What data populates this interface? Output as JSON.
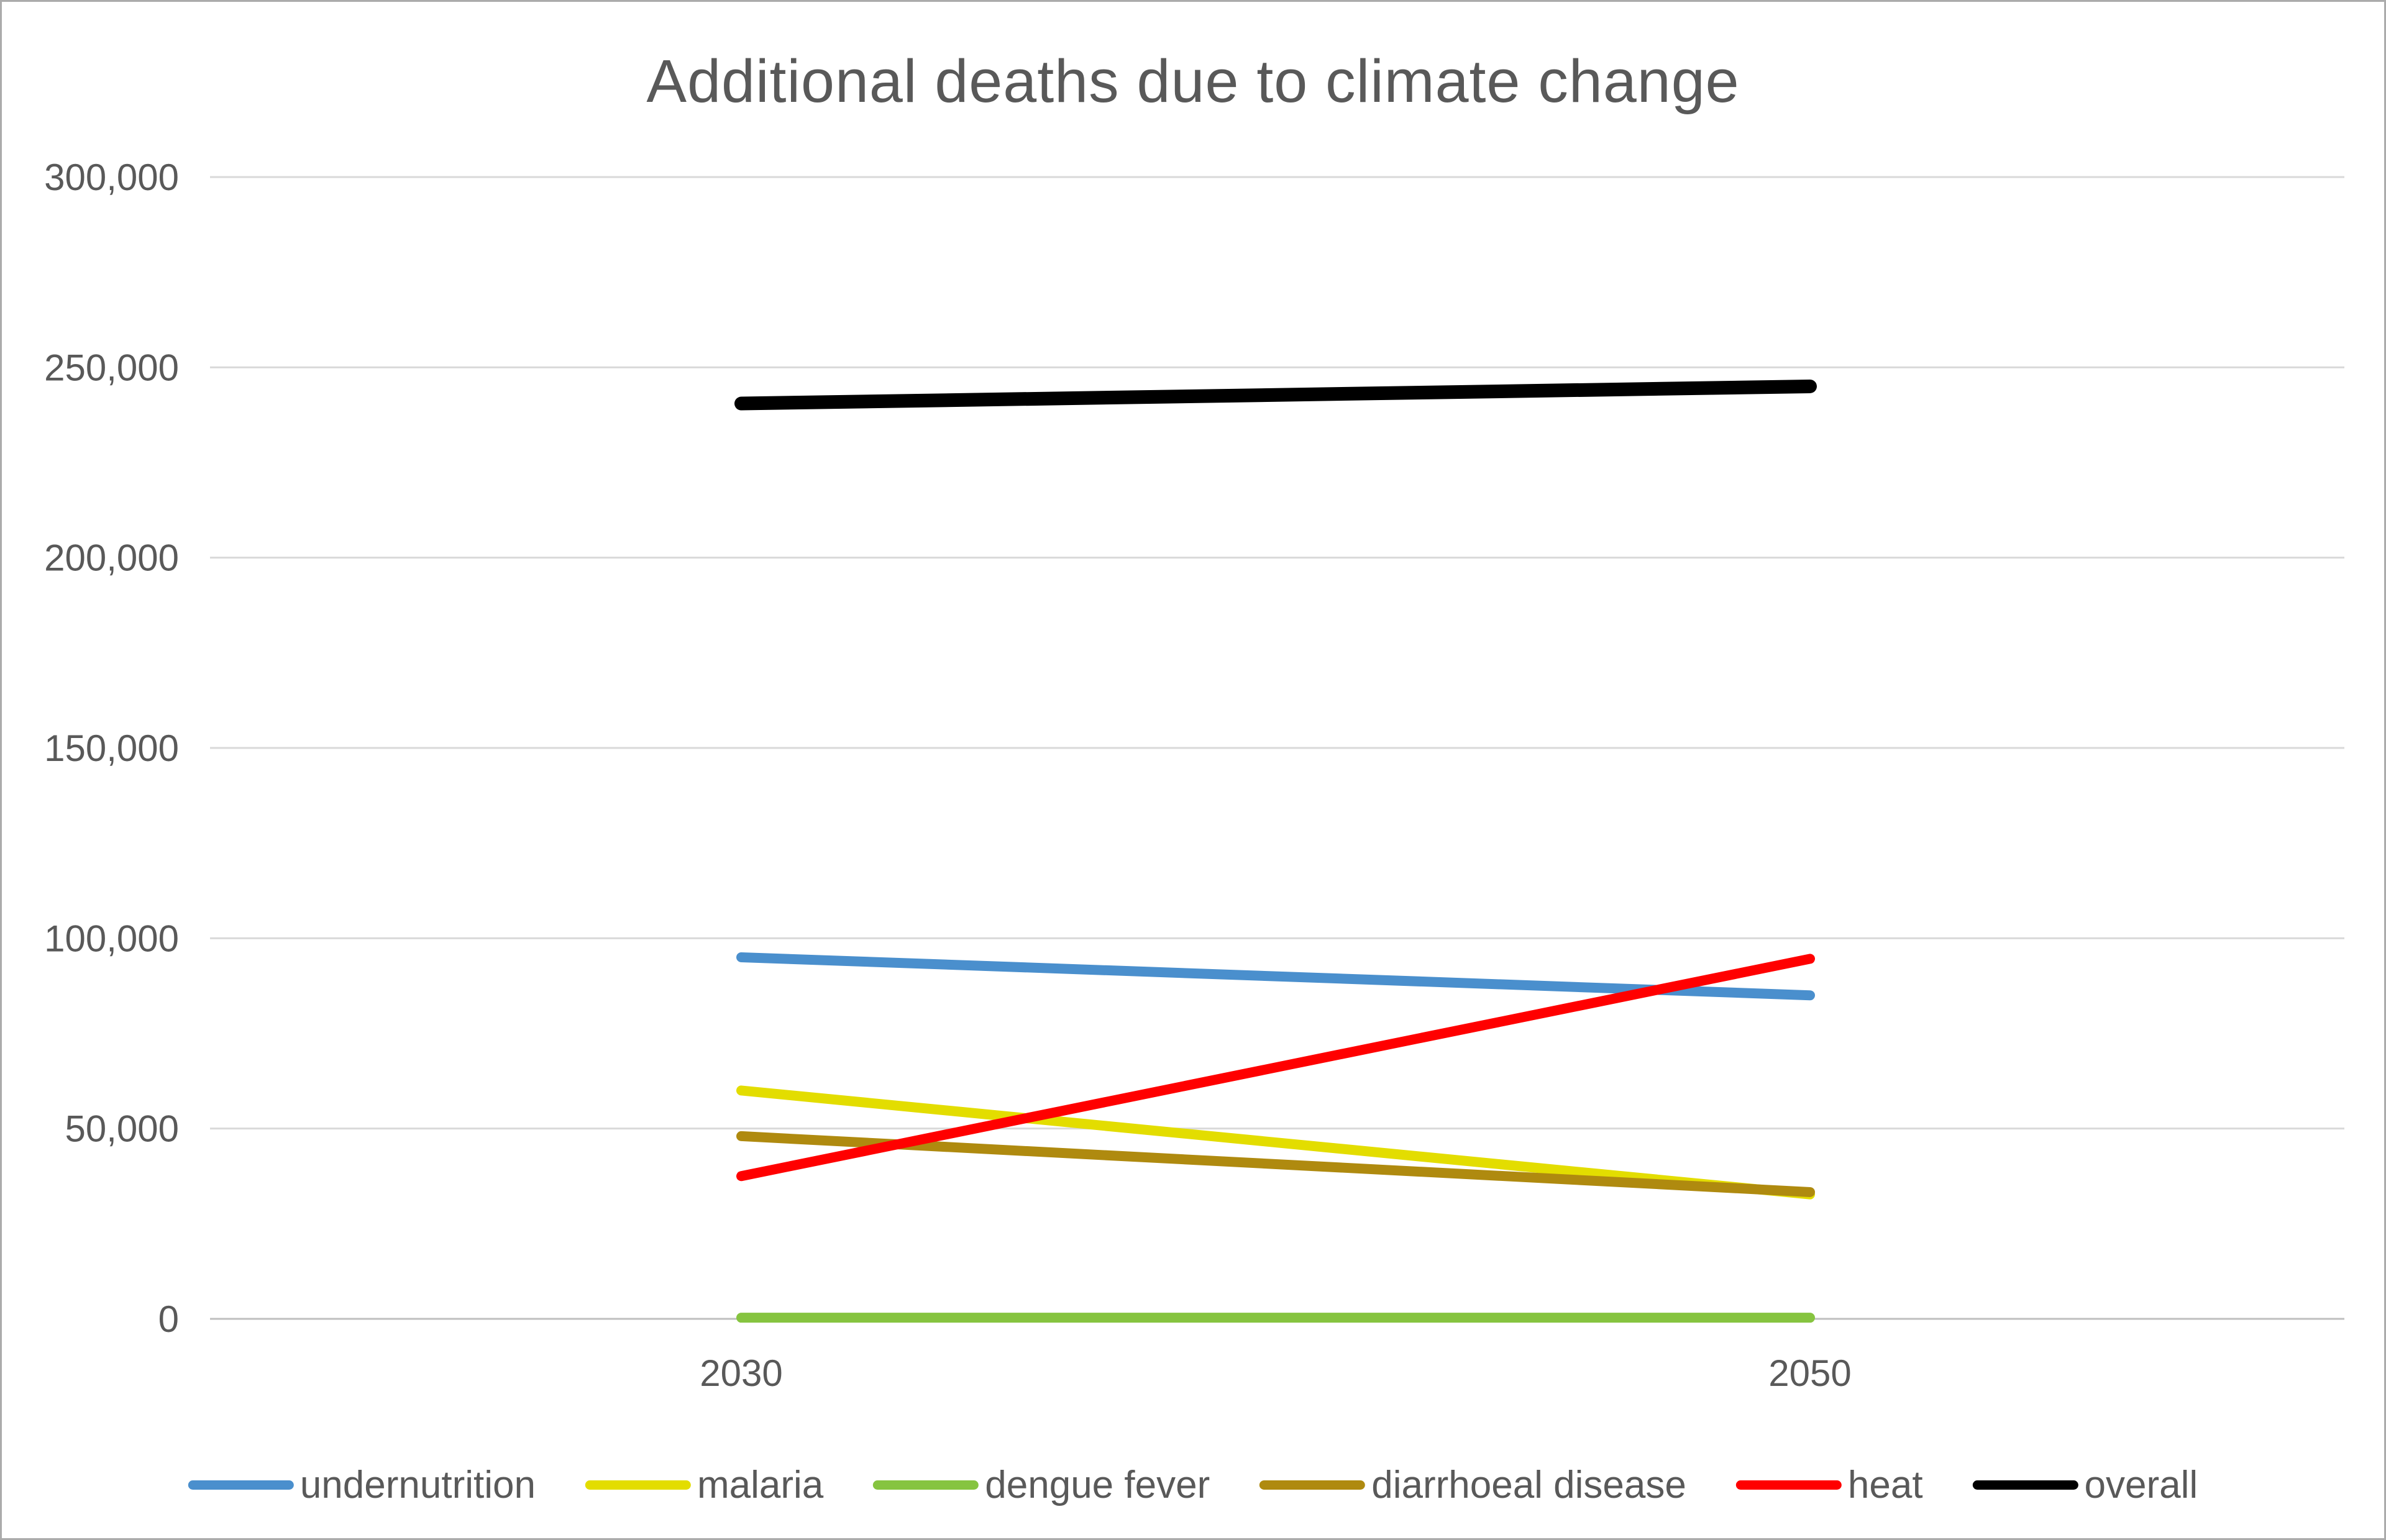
{
  "chart_data": {
    "type": "line",
    "title": "Additional deaths due to climate change",
    "categories": [
      "2030",
      "2050"
    ],
    "series": [
      {
        "name": "undernutrition",
        "color": "#4A8FCD",
        "values": [
          95000,
          85000
        ]
      },
      {
        "name": "malaria",
        "color": "#E3DD00",
        "values": [
          60000,
          32700
        ]
      },
      {
        "name": "dengue fever",
        "color": "#86C440",
        "values": [
          300,
          300
        ]
      },
      {
        "name": "diarrhoeal disease",
        "color": "#AF8A0F",
        "values": [
          48000,
          33300
        ]
      },
      {
        "name": "heat",
        "color": "#FF0000",
        "values": [
          37500,
          94600
        ]
      },
      {
        "name": "overall",
        "color": "#000000",
        "values": [
          240500,
          245000
        ]
      }
    ],
    "ylim": [
      0,
      300000
    ],
    "y_tick_interval": 50000,
    "y_tick_labels": [
      "0",
      "50,000",
      "100,000",
      "150,000",
      "200,000",
      "250,000",
      "300,000"
    ],
    "xlabel": "",
    "ylabel": "",
    "grid": true,
    "legend_position": "bottom"
  },
  "colors": {
    "gridline": "#D9D9D9",
    "axis_line": "#BFBFBF",
    "tick_text": "#595959",
    "title_text": "#595959",
    "background": "#FFFFFF",
    "frame_border": "#ABABAB"
  }
}
